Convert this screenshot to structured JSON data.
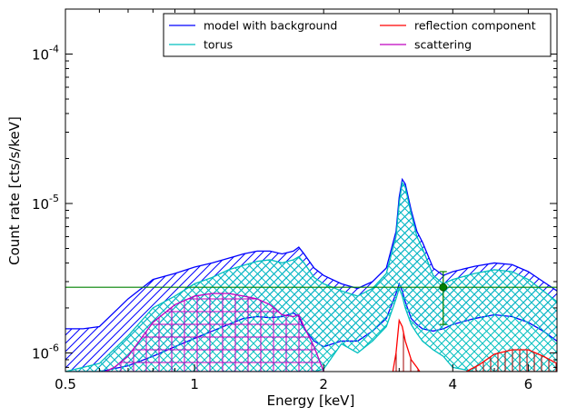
{
  "chart_data": {
    "type": "line",
    "xlabel": "Energy [keV]",
    "ylabel": "Count rate [cts/s/keV]",
    "xscale": "log",
    "yscale": "log",
    "xlim": [
      0.5,
      7.0
    ],
    "ylim": [
      7.5e-07,
      0.0002
    ],
    "grid": false,
    "legend_placement": "top-right",
    "x_ticks": [
      {
        "value": 0.5,
        "label": "0.5"
      },
      {
        "value": 1,
        "label": "1"
      },
      {
        "value": 2,
        "label": "2"
      },
      {
        "value": 4,
        "label": "4"
      },
      {
        "value": 6,
        "label": "6"
      }
    ],
    "y_ticks": [
      {
        "value": 1e-06,
        "base": "10",
        "exp": "-6"
      },
      {
        "value": 1e-05,
        "base": "10",
        "exp": "-5"
      },
      {
        "value": 0.0001,
        "base": "10",
        "exp": "-4"
      }
    ],
    "legend": [
      {
        "label": "model with background",
        "color": "#0000ff"
      },
      {
        "label": "reflection component",
        "color": "#ff0000"
      },
      {
        "label": "torus",
        "color": "#00bfbf"
      },
      {
        "label": "scattering",
        "color": "#bf00bf"
      }
    ],
    "series": [
      {
        "name": "model with background",
        "color": "#0000ff",
        "x": [
          0.5,
          0.55,
          0.6,
          0.7,
          0.8,
          0.9,
          1.0,
          1.1,
          1.2,
          1.3,
          1.4,
          1.5,
          1.6,
          1.7,
          1.75,
          1.8,
          1.9,
          2.0,
          2.2,
          2.4,
          2.6,
          2.8,
          2.95,
          3.0,
          3.05,
          3.1,
          3.2,
          3.3,
          3.4,
          3.6,
          3.8,
          4.0,
          4.5,
          5.0,
          5.5,
          6.0,
          6.5,
          7.0
        ],
        "lower": [
          7.5e-07,
          7.5e-07,
          7.5e-07,
          8.2e-07,
          9.5e-07,
          1.1e-06,
          1.25e-06,
          1.4e-06,
          1.55e-06,
          1.7e-06,
          1.75e-06,
          1.72e-06,
          1.75e-06,
          1.85e-06,
          1.75e-06,
          1.45e-06,
          1.2e-06,
          1.1e-06,
          1.2e-06,
          1.2e-06,
          1.4e-06,
          1.7e-06,
          2.5e-06,
          2.9e-06,
          2.6e-06,
          2.2e-06,
          1.7e-06,
          1.55e-06,
          1.45e-06,
          1.4e-06,
          1.45e-06,
          1.55e-06,
          1.7e-06,
          1.8e-06,
          1.75e-06,
          1.6e-06,
          1.4e-06,
          1.2e-06
        ],
        "upper": [
          1.45e-06,
          1.45e-06,
          1.5e-06,
          2.3e-06,
          3.1e-06,
          3.4e-06,
          3.75e-06,
          4e-06,
          4.3e-06,
          4.6e-06,
          4.8e-06,
          4.8e-06,
          4.6e-06,
          4.8e-06,
          5.1e-06,
          4.6e-06,
          3.7e-06,
          3.3e-06,
          2.9e-06,
          2.7e-06,
          3e-06,
          3.7e-06,
          6.5e-06,
          1.1e-05,
          1.45e-05,
          1.35e-05,
          9e-06,
          6.5e-06,
          5.5e-06,
          3.7e-06,
          3.3e-06,
          3.5e-06,
          3.8e-06,
          4e-06,
          3.9e-06,
          3.5e-06,
          3e-06,
          2.6e-06
        ]
      },
      {
        "name": "torus",
        "color": "#00bfbf",
        "x": [
          0.5,
          0.6,
          0.7,
          0.8,
          0.9,
          1.0,
          1.1,
          1.2,
          1.3,
          1.4,
          1.5,
          1.6,
          1.7,
          1.75,
          1.8,
          1.9,
          2.0,
          2.2,
          2.4,
          2.6,
          2.8,
          2.95,
          3.0,
          3.05,
          3.1,
          3.2,
          3.3,
          3.4,
          3.6,
          3.8,
          4.0,
          4.5,
          5.0,
          5.5,
          6.0,
          6.5,
          7.0
        ],
        "lower": [
          7.5e-07,
          7.5e-07,
          7.5e-07,
          7.5e-07,
          7.5e-07,
          7.5e-07,
          7.5e-07,
          7.5e-07,
          7.5e-07,
          7.5e-07,
          7.5e-07,
          7.5e-07,
          7.5e-07,
          7.5e-07,
          7.5e-07,
          7.5e-07,
          7.8e-07,
          1.15e-06,
          1e-06,
          1.2e-06,
          1.5e-06,
          2.3e-06,
          2.7e-06,
          2.4e-06,
          2e-06,
          1.55e-06,
          1.35e-06,
          1.2e-06,
          1.05e-06,
          9.5e-07,
          8e-07,
          7.5e-07,
          7.5e-07,
          7.5e-07,
          7.5e-07,
          7.5e-07,
          7.5e-07
        ],
        "upper": [
          7.5e-07,
          8.5e-07,
          1.3e-06,
          2e-06,
          2.4e-06,
          2.9e-06,
          3.2e-06,
          3.6e-06,
          3.85e-06,
          4.1e-06,
          4.2e-06,
          4e-06,
          4.2e-06,
          4.4e-06,
          4e-06,
          3.2e-06,
          2.9e-06,
          2.6e-06,
          2.4e-06,
          2.7e-06,
          3.4e-06,
          6e-06,
          1e-05,
          1.38e-05,
          1.28e-05,
          8.5e-06,
          6e-06,
          5e-06,
          3.3e-06,
          2.9e-06,
          3.1e-06,
          3.4e-06,
          3.6e-06,
          3.5e-06,
          3.1e-06,
          2.6e-06,
          2.2e-06
        ]
      },
      {
        "name": "scattering",
        "color": "#bf00bf",
        "x": [
          0.62,
          0.65,
          0.7,
          0.8,
          0.9,
          1.0,
          1.1,
          1.2,
          1.3,
          1.4,
          1.5,
          1.6,
          1.7,
          1.75,
          1.8,
          1.9,
          2.0
        ],
        "lower": [
          7.5e-07,
          7.5e-07,
          7.5e-07,
          7.5e-07,
          7.5e-07,
          7.5e-07,
          7.5e-07,
          7.5e-07,
          7.5e-07,
          7.5e-07,
          7.5e-07,
          7.5e-07,
          7.5e-07,
          7.5e-07,
          7.5e-07,
          7.5e-07,
          7.5e-07
        ],
        "upper": [
          7.5e-07,
          8e-07,
          9.5e-07,
          1.6e-06,
          2.1e-06,
          2.4e-06,
          2.5e-06,
          2.5e-06,
          2.4e-06,
          2.3e-06,
          2.1e-06,
          1.8e-06,
          1.75e-06,
          1.8e-06,
          1.5e-06,
          1.1e-06,
          7.5e-07
        ]
      },
      {
        "name": "reflection component",
        "color": "#ff0000",
        "x": [
          2.9,
          2.95,
          3.0,
          3.05,
          3.1,
          3.2,
          3.3,
          3.35
        ],
        "lower": [
          7.5e-07,
          7.5e-07,
          7.5e-07,
          7.5e-07,
          7.5e-07,
          7.5e-07,
          7.5e-07,
          7.5e-07
        ],
        "upper": [
          7.5e-07,
          1e-06,
          1.65e-06,
          1.5e-06,
          1.2e-06,
          9e-07,
          8e-07,
          7.5e-07
        ]
      },
      {
        "name": "reflection component (high-energy)",
        "color": "#ff0000",
        "x": [
          4.3,
          4.6,
          5.0,
          5.5,
          6.0,
          6.5,
          7.0
        ],
        "lower": [
          7.5e-07,
          7.5e-07,
          7.5e-07,
          7.5e-07,
          7.5e-07,
          7.5e-07,
          7.5e-07
        ],
        "upper": [
          7.5e-07,
          8.3e-07,
          9.8e-07,
          1.05e-06,
          1.05e-06,
          9.5e-07,
          8.5e-07
        ]
      }
    ],
    "reference_line": {
      "y": 2.75e-06,
      "color": "#008000"
    },
    "data_point": {
      "x": 3.8,
      "y": 2.75e-06,
      "yerr_low": 1.55e-06,
      "yerr_high": 3.5e-06,
      "color": "#008000"
    }
  }
}
